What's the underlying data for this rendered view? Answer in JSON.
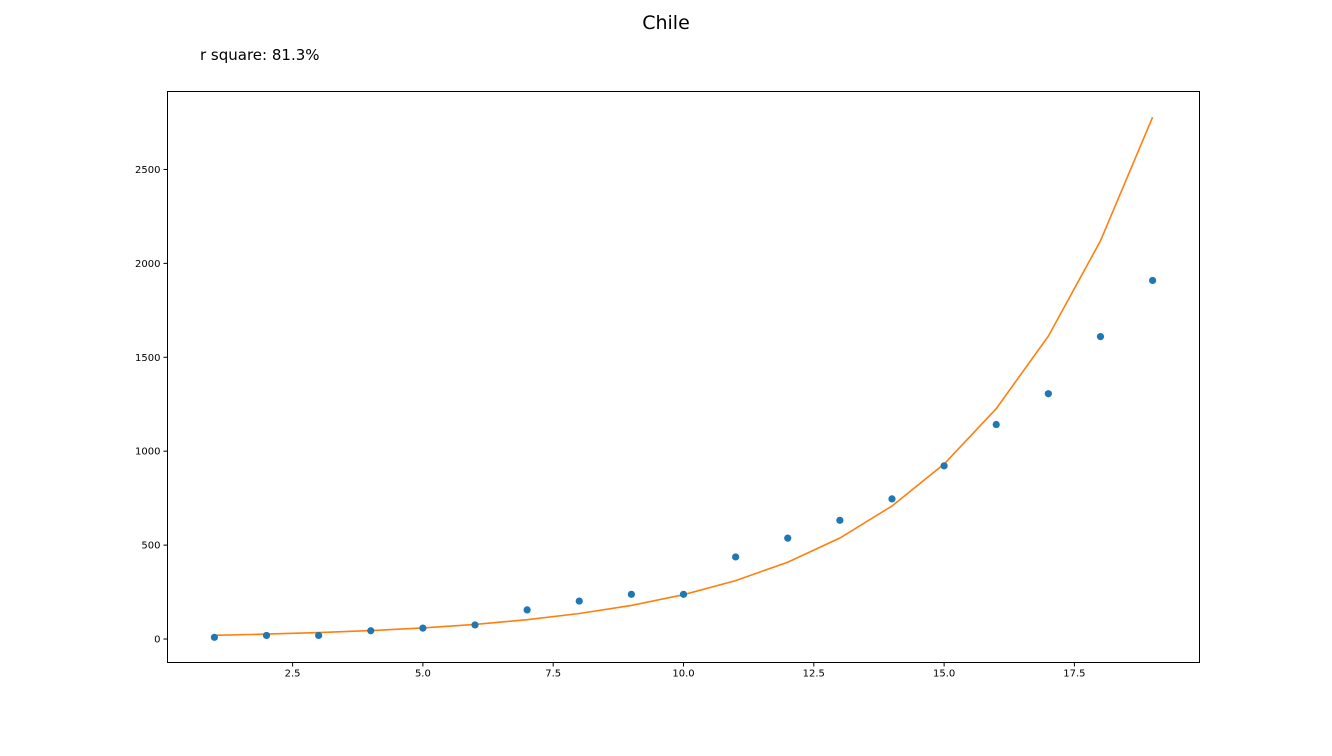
{
  "chart_data": {
    "type": "scatter",
    "title": "Chile",
    "annotation": "r square: 81.3%",
    "xlabel": "",
    "ylabel": "",
    "xlim": [
      0.1,
      19.9
    ],
    "ylim": [
      -125,
      2915
    ],
    "x_ticks": [
      2.5,
      5.0,
      7.5,
      10.0,
      12.5,
      15.0,
      17.5
    ],
    "x_tick_labels": [
      "2.5",
      "5.0",
      "7.5",
      "10.0",
      "12.5",
      "15.0",
      "17.5"
    ],
    "y_ticks": [
      0,
      500,
      1000,
      1500,
      2000,
      2500
    ],
    "y_tick_labels": [
      "0",
      "500",
      "1000",
      "1500",
      "2000",
      "2500"
    ],
    "grid": false,
    "series": [
      {
        "kind": "scatter",
        "color": "#1f77b4",
        "x": [
          1,
          2,
          3,
          4,
          5,
          6,
          7,
          8,
          9,
          10,
          11,
          12,
          13,
          14,
          15,
          16,
          17,
          18,
          19
        ],
        "y": [
          9,
          19,
          19,
          44,
          58,
          75,
          155,
          202,
          238,
          238,
          437,
          537,
          632,
          746,
          922,
          1142,
          1306,
          1610,
          1909
        ]
      },
      {
        "kind": "line",
        "color": "#ff7f0e",
        "x": [
          1,
          2,
          3,
          4,
          5,
          6,
          7,
          8,
          9,
          10,
          11,
          12,
          13,
          14,
          15,
          16,
          17,
          18,
          19
        ],
        "y": [
          20,
          26,
          34,
          45,
          59,
          78,
          103,
          136,
          179,
          236,
          311,
          409,
          538,
          708,
          932,
          1226,
          1612,
          2120,
          2778
        ]
      }
    ]
  }
}
